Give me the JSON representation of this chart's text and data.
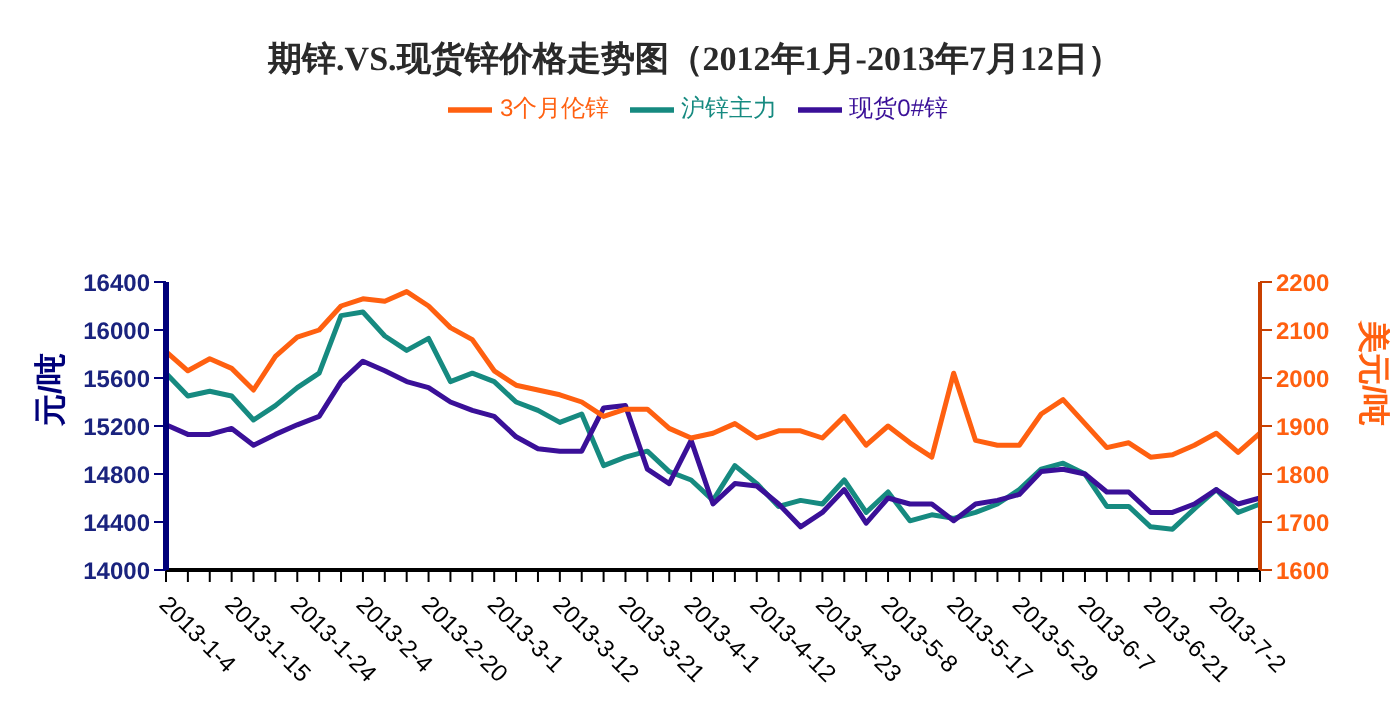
{
  "chart_data": {
    "type": "line",
    "title": "期锌.VS.现货锌价格走势图（2012年1月-2013年7月12日）",
    "ylabel": "元/吨",
    "y2label": "美元/吨",
    "categories": [
      "2013-1-4",
      null,
      null,
      "2013-1-15",
      null,
      null,
      "2013-1-24",
      null,
      null,
      "2013-2-4",
      null,
      null,
      "2013-2-20",
      null,
      null,
      "2013-3-1",
      null,
      null,
      "2013-3-12",
      null,
      null,
      "2013-3-21",
      null,
      null,
      "2013-4-1",
      null,
      null,
      "2013-4-12",
      null,
      null,
      "2013-4-23",
      null,
      null,
      "2013-5-8",
      null,
      null,
      "2013-5-17",
      null,
      null,
      "2013-5-29",
      null,
      null,
      "2013-6-7",
      null,
      null,
      "2013-6-21",
      null,
      null,
      "2013-7-2",
      null,
      null
    ],
    "series": [
      {
        "name": "沪锌主力",
        "color": "#168a80",
        "values": [
          15640,
          15450,
          15490,
          15450,
          15250,
          15370,
          15520,
          15640,
          16120,
          16150,
          15950,
          15830,
          15930,
          15570,
          15640,
          15570,
          15400,
          15330,
          15230,
          15300,
          14870,
          14940,
          14990,
          14820,
          14750,
          14580,
          14870,
          14720,
          14530,
          14580,
          14550,
          14750,
          14480,
          14650,
          14410,
          14460,
          14430,
          14480,
          14550,
          14670,
          14840,
          14890,
          14800,
          14530,
          14530,
          14360,
          14340,
          14510,
          14670,
          14480,
          14550
        ]
      },
      {
        "name": "现货0#锌",
        "color": "#3a1098",
        "values": [
          15210,
          15130,
          15130,
          15180,
          15040,
          15130,
          15210,
          15280,
          15570,
          15740,
          15660,
          15570,
          15520,
          15400,
          15330,
          15280,
          15110,
          15010,
          14990,
          14990,
          15350,
          15370,
          14840,
          14720,
          15080,
          14550,
          14720,
          14700,
          14550,
          14360,
          14480,
          14670,
          14390,
          14600,
          14550,
          14550,
          14410,
          14550,
          14580,
          14630,
          14820,
          14840,
          14800,
          14650,
          14650,
          14480,
          14480,
          14550,
          14670,
          14550,
          14600
        ]
      },
      {
        "name": "3个月伦锌",
        "color": "#ff6010",
        "axis": "y2",
        "values": [
          2055,
          2015,
          2040,
          2020,
          1975,
          2045,
          2085,
          2100,
          2150,
          2165,
          2160,
          2180,
          2150,
          2105,
          2080,
          2015,
          1985,
          1975,
          1965,
          1950,
          1920,
          1935,
          1935,
          1895,
          1875,
          1885,
          1905,
          1875,
          1890,
          1890,
          1875,
          1920,
          1860,
          1900,
          1865,
          1835,
          2010,
          1870,
          1860,
          1860,
          1925,
          1955,
          1905,
          1855,
          1865,
          1835,
          1840,
          1860,
          1885,
          1845,
          1885
        ]
      }
    ],
    "ylim": [
      14000,
      16400
    ],
    "yticks": [
      14000,
      14400,
      14800,
      15200,
      15600,
      16000,
      16400
    ],
    "y2lim": [
      1600,
      2200
    ],
    "y2ticks": [
      1600,
      1700,
      1800,
      1900,
      2000,
      2100,
      2200
    ],
    "legend": "top",
    "grid": false,
    "marker": "none",
    "line_style": "solid"
  }
}
